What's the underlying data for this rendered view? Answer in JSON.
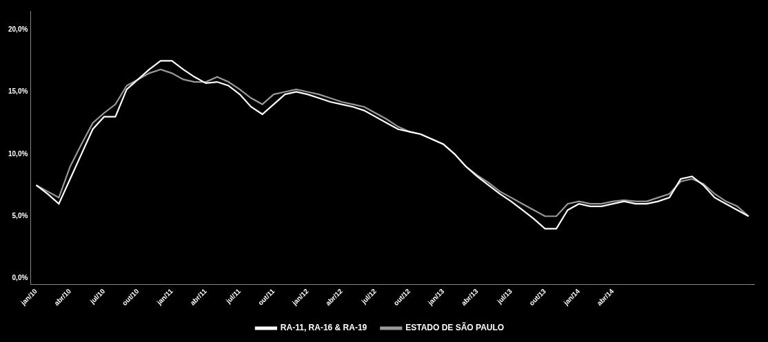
{
  "chart_data": {
    "type": "line",
    "categories": [
      "jan/10",
      null,
      null,
      "abr/10",
      null,
      null,
      "jul/10",
      null,
      null,
      "out/10",
      null,
      null,
      "jan/11",
      null,
      null,
      "abr/11",
      null,
      null,
      "jul/11",
      null,
      null,
      "out/11",
      null,
      null,
      "jan/12",
      null,
      null,
      "abr/12",
      null,
      null,
      "jul/12",
      null,
      null,
      "out/12",
      null,
      null,
      "jan/13",
      null,
      null,
      "abr/13",
      null,
      null,
      "jul/13",
      null,
      null,
      "out/13",
      null,
      null,
      "jan/14",
      null,
      null,
      "abr/14",
      null,
      null,
      null,
      null,
      null,
      null,
      null,
      null,
      null,
      null,
      null,
      null
    ],
    "series": [
      {
        "name": "RA-11, RA-16 & RA-19",
        "color": "#ffffff",
        "values": [
          0.075,
          0.068,
          0.06,
          0.08,
          0.1,
          0.12,
          0.13,
          0.13,
          0.152,
          0.16,
          0.168,
          0.175,
          0.175,
          0.168,
          0.162,
          0.157,
          0.158,
          0.155,
          0.148,
          0.138,
          0.132,
          0.14,
          0.148,
          0.15,
          0.148,
          0.145,
          0.142,
          0.14,
          0.138,
          0.135,
          0.13,
          0.125,
          0.12,
          0.118,
          0.116,
          0.112,
          0.108,
          0.1,
          0.09,
          0.082,
          0.075,
          0.068,
          0.062,
          0.055,
          0.048,
          0.04,
          0.04,
          0.055,
          0.06,
          0.058,
          0.058,
          0.06,
          0.062,
          0.06,
          0.06,
          0.062,
          0.065,
          0.08,
          0.082,
          0.075,
          0.065,
          0.06,
          0.055,
          0.05
        ]
      },
      {
        "name": "ESTADO DE SÃO PAULO",
        "color": "#999999",
        "values": [
          0.075,
          0.07,
          0.065,
          0.09,
          0.108,
          0.125,
          0.133,
          0.14,
          0.155,
          0.16,
          0.165,
          0.168,
          0.165,
          0.16,
          0.158,
          0.158,
          0.162,
          0.158,
          0.152,
          0.145,
          0.14,
          0.148,
          0.15,
          0.152,
          0.15,
          0.148,
          0.145,
          0.142,
          0.14,
          0.138,
          0.133,
          0.128,
          0.122,
          0.118,
          0.116,
          0.112,
          0.108,
          0.1,
          0.09,
          0.083,
          0.077,
          0.07,
          0.065,
          0.06,
          0.055,
          0.05,
          0.05,
          0.06,
          0.062,
          0.06,
          0.06,
          0.062,
          0.063,
          0.062,
          0.062,
          0.065,
          0.068,
          0.078,
          0.08,
          0.076,
          0.068,
          0.062,
          0.058,
          0.05
        ]
      }
    ],
    "ylim": [
      -0.005,
      0.215
    ],
    "yticks": [
      {
        "value": 0.0,
        "label": "0,0%"
      },
      {
        "value": 0.05,
        "label": "5,0%"
      },
      {
        "value": 0.1,
        "label": "10,0%"
      },
      {
        "value": 0.15,
        "label": "15,0%"
      },
      {
        "value": 0.2,
        "label": "20,0%"
      }
    ],
    "grid": false,
    "legend": "bottom"
  }
}
